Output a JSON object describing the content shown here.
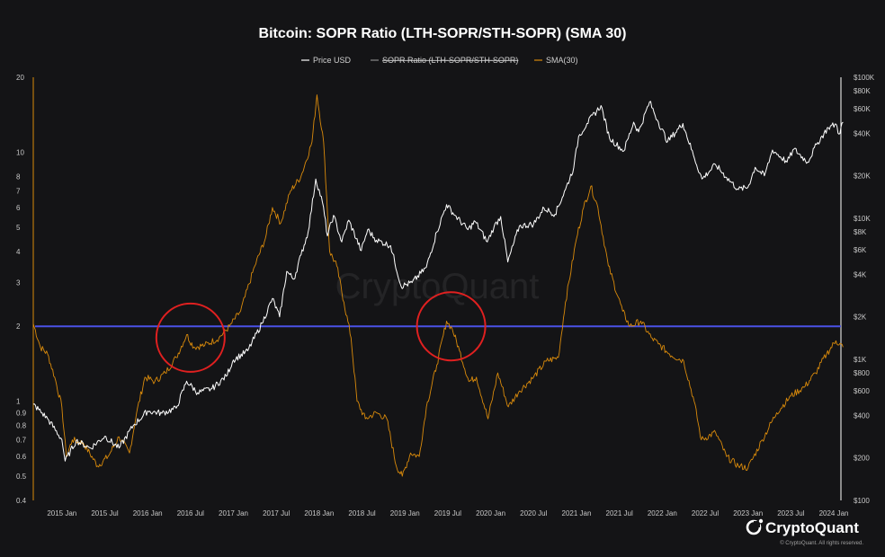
{
  "chart_data": {
    "type": "line",
    "title": "Bitcoin: SOPR Ratio (LTH-SOPR/STH-SOPR) (SMA 30)",
    "legend": [
      "Price USD",
      "SOPR Ratio (LTH-SOPR/STH-SOPR)",
      "SMA(30)"
    ],
    "legend_placement": "top-center",
    "x_range": [
      "2014-09",
      "2024-02"
    ],
    "x_ticks": [
      "2015 Jan",
      "2015 Jul",
      "2016 Jan",
      "2016 Jul",
      "2017 Jan",
      "2017 Jul",
      "2018 Jan",
      "2018 Jul",
      "2019 Jan",
      "2019 Jul",
      "2020 Jan",
      "2020 Jul",
      "2021 Jan",
      "2021 Jul",
      "2022 Jan",
      "2022 Jul",
      "2023 Jan",
      "2023 Jul",
      "2024 Jan"
    ],
    "y_left": {
      "scale": "log",
      "range": [
        0.4,
        20
      ],
      "ticks": [
        {
          "value": 0.4,
          "label": "0.4"
        },
        {
          "value": 0.5,
          "label": "0.5"
        },
        {
          "value": 0.6,
          "label": "0.6"
        },
        {
          "value": 0.7,
          "label": "0.7"
        },
        {
          "value": 0.8,
          "label": "0.8"
        },
        {
          "value": 0.9,
          "label": "0.9"
        },
        {
          "value": 1,
          "label": "1"
        },
        {
          "value": 2,
          "label": "2"
        },
        {
          "value": 3,
          "label": "3"
        },
        {
          "value": 4,
          "label": "4"
        },
        {
          "value": 5,
          "label": "5"
        },
        {
          "value": 6,
          "label": "6"
        },
        {
          "value": 7,
          "label": "7"
        },
        {
          "value": 8,
          "label": "8"
        },
        {
          "value": 10,
          "label": "10"
        },
        {
          "value": 20,
          "label": "20"
        }
      ]
    },
    "y_right": {
      "scale": "log",
      "range": [
        100,
        100000
      ],
      "ticks": [
        {
          "value": 100,
          "label": "$100"
        },
        {
          "value": 200,
          "label": "$200"
        },
        {
          "value": 400,
          "label": "$400"
        },
        {
          "value": 600,
          "label": "$600"
        },
        {
          "value": 800,
          "label": "$800"
        },
        {
          "value": 1000,
          "label": "$1K"
        },
        {
          "value": 2000,
          "label": "$2K"
        },
        {
          "value": 4000,
          "label": "$4K"
        },
        {
          "value": 6000,
          "label": "$6K"
        },
        {
          "value": 8000,
          "label": "$8K"
        },
        {
          "value": 10000,
          "label": "$10K"
        },
        {
          "value": 20000,
          "label": "$20K"
        },
        {
          "value": 40000,
          "label": "$40K"
        },
        {
          "value": 60000,
          "label": "$60K"
        },
        {
          "value": 80000,
          "label": "$80K"
        },
        {
          "value": 100000,
          "label": "$100K"
        }
      ]
    },
    "series": [
      {
        "name": "Price USD",
        "axis": "right",
        "color": "#ffffff",
        "points": [
          [
            "2014-09-01",
            480
          ],
          [
            "2014-11-01",
            380
          ],
          [
            "2015-01-01",
            270
          ],
          [
            "2015-01-15",
            190
          ],
          [
            "2015-03-01",
            265
          ],
          [
            "2015-05-01",
            235
          ],
          [
            "2015-07-01",
            285
          ],
          [
            "2015-09-01",
            235
          ],
          [
            "2015-11-01",
            340
          ],
          [
            "2016-01-01",
            430
          ],
          [
            "2016-03-01",
            415
          ],
          [
            "2016-05-01",
            450
          ],
          [
            "2016-06-15",
            700
          ],
          [
            "2016-08-01",
            580
          ],
          [
            "2016-10-01",
            620
          ],
          [
            "2016-12-01",
            760
          ],
          [
            "2017-01-01",
            990
          ],
          [
            "2017-03-01",
            1150
          ],
          [
            "2017-05-01",
            1800
          ],
          [
            "2017-06-15",
            2700
          ],
          [
            "2017-07-15",
            2000
          ],
          [
            "2017-08-15",
            4200
          ],
          [
            "2017-09-15",
            3700
          ],
          [
            "2017-10-15",
            5500
          ],
          [
            "2017-11-15",
            8000
          ],
          [
            "2017-12-17",
            19000
          ],
          [
            "2018-01-15",
            13000
          ],
          [
            "2018-02-06",
            7500
          ],
          [
            "2018-03-01",
            10500
          ],
          [
            "2018-04-06",
            6800
          ],
          [
            "2018-05-05",
            9700
          ],
          [
            "2018-06-28",
            5900
          ],
          [
            "2018-07-25",
            8300
          ],
          [
            "2018-09-01",
            7000
          ],
          [
            "2018-11-01",
            6400
          ],
          [
            "2018-12-15",
            3300
          ],
          [
            "2019-02-01",
            3500
          ],
          [
            "2019-04-01",
            4500
          ],
          [
            "2019-05-15",
            8000
          ],
          [
            "2019-06-26",
            12500
          ],
          [
            "2019-08-01",
            10500
          ],
          [
            "2019-09-26",
            8300
          ],
          [
            "2019-10-26",
            9500
          ],
          [
            "2019-12-17",
            6800
          ],
          [
            "2020-01-15",
            8700
          ],
          [
            "2020-02-13",
            10300
          ],
          [
            "2020-03-13",
            4900
          ],
          [
            "2020-05-01",
            8800
          ],
          [
            "2020-07-01",
            9100
          ],
          [
            "2020-08-15",
            11800
          ],
          [
            "2020-10-01",
            10700
          ],
          [
            "2020-11-15",
            16000
          ],
          [
            "2020-12-20",
            23000
          ],
          [
            "2021-01-10",
            38000
          ],
          [
            "2021-02-15",
            47000
          ],
          [
            "2021-04-14",
            63000
          ],
          [
            "2021-05-20",
            37000
          ],
          [
            "2021-07-20",
            30000
          ],
          [
            "2021-09-01",
            48000
          ],
          [
            "2021-09-22",
            41000
          ],
          [
            "2021-11-08",
            67000
          ],
          [
            "2021-12-15",
            48000
          ],
          [
            "2022-01-24",
            35000
          ],
          [
            "2022-03-28",
            47000
          ],
          [
            "2022-05-12",
            28000
          ],
          [
            "2022-06-18",
            19000
          ],
          [
            "2022-08-15",
            24000
          ],
          [
            "2022-10-01",
            19500
          ],
          [
            "2022-11-21",
            16000
          ],
          [
            "2022-12-31",
            16600
          ],
          [
            "2023-02-01",
            23000
          ],
          [
            "2023-03-10",
            20000
          ],
          [
            "2023-04-14",
            30500
          ],
          [
            "2023-06-15",
            25000
          ],
          [
            "2023-07-14",
            31000
          ],
          [
            "2023-09-11",
            25000
          ],
          [
            "2023-10-24",
            34500
          ],
          [
            "2023-12-08",
            44000
          ],
          [
            "2024-01-11",
            46500
          ],
          [
            "2024-01-23",
            39500
          ],
          [
            "2024-02-10",
            48000
          ]
        ]
      },
      {
        "name": "SMA(30)",
        "axis": "left",
        "color": "#d98a0b",
        "points": [
          [
            "2014-09-01",
            2.05
          ],
          [
            "2014-10-01",
            1.65
          ],
          [
            "2014-11-01",
            1.55
          ],
          [
            "2014-12-01",
            1.25
          ],
          [
            "2015-01-01",
            0.95
          ],
          [
            "2015-01-20",
            0.6
          ],
          [
            "2015-02-15",
            0.7
          ],
          [
            "2015-04-01",
            0.68
          ],
          [
            "2015-06-01",
            0.55
          ],
          [
            "2015-07-15",
            0.6
          ],
          [
            "2015-09-01",
            0.72
          ],
          [
            "2015-10-15",
            0.62
          ],
          [
            "2015-11-15",
            0.9
          ],
          [
            "2015-12-20",
            1.25
          ],
          [
            "2016-02-01",
            1.2
          ],
          [
            "2016-03-15",
            1.3
          ],
          [
            "2016-05-01",
            1.5
          ],
          [
            "2016-06-15",
            1.85
          ],
          [
            "2016-07-15",
            1.65
          ],
          [
            "2016-09-01",
            1.68
          ],
          [
            "2016-11-01",
            1.8
          ],
          [
            "2016-12-15",
            2.0
          ],
          [
            "2017-02-01",
            2.3
          ],
          [
            "2017-04-01",
            3.5
          ],
          [
            "2017-05-15",
            4.5
          ],
          [
            "2017-06-15",
            6.0
          ],
          [
            "2017-07-20",
            5.2
          ],
          [
            "2017-09-01",
            7.0
          ],
          [
            "2017-10-15",
            8.0
          ],
          [
            "2017-12-01",
            11.0
          ],
          [
            "2017-12-22",
            17.0
          ],
          [
            "2018-01-20",
            11.0
          ],
          [
            "2018-02-15",
            4.0
          ],
          [
            "2018-03-15",
            3.5
          ],
          [
            "2018-04-15",
            2.5
          ],
          [
            "2018-05-15",
            1.8
          ],
          [
            "2018-06-10",
            1.0
          ],
          [
            "2018-07-15",
            0.85
          ],
          [
            "2018-09-01",
            0.9
          ],
          [
            "2018-10-15",
            0.85
          ],
          [
            "2018-11-25",
            0.55
          ],
          [
            "2018-12-20",
            0.5
          ],
          [
            "2019-01-25",
            0.62
          ],
          [
            "2019-03-01",
            0.6
          ],
          [
            "2019-04-01",
            0.95
          ],
          [
            "2019-05-15",
            1.4
          ],
          [
            "2019-06-26",
            2.1
          ],
          [
            "2019-07-20",
            1.95
          ],
          [
            "2019-08-20",
            1.6
          ],
          [
            "2019-09-30",
            1.2
          ],
          [
            "2019-11-01",
            1.25
          ],
          [
            "2019-12-20",
            0.85
          ],
          [
            "2020-02-01",
            1.3
          ],
          [
            "2020-03-15",
            0.95
          ],
          [
            "2020-05-01",
            1.1
          ],
          [
            "2020-07-01",
            1.25
          ],
          [
            "2020-08-25",
            1.45
          ],
          [
            "2020-10-15",
            1.5
          ],
          [
            "2020-11-15",
            2.5
          ],
          [
            "2021-01-01",
            4.5
          ],
          [
            "2021-02-01",
            6.0
          ],
          [
            "2021-03-01",
            7.3
          ],
          [
            "2021-04-01",
            6.0
          ],
          [
            "2021-05-15",
            3.5
          ],
          [
            "2021-07-15",
            2.3
          ],
          [
            "2021-08-15",
            2.0
          ],
          [
            "2021-10-01",
            2.1
          ],
          [
            "2021-11-15",
            1.8
          ],
          [
            "2021-12-15",
            1.7
          ],
          [
            "2022-02-01",
            1.55
          ],
          [
            "2022-04-01",
            1.45
          ],
          [
            "2022-05-15",
            1.0
          ],
          [
            "2022-06-15",
            0.7
          ],
          [
            "2022-08-15",
            0.75
          ],
          [
            "2022-10-01",
            0.6
          ],
          [
            "2022-11-21",
            0.55
          ],
          [
            "2023-01-01",
            0.54
          ],
          [
            "2023-03-01",
            0.7
          ],
          [
            "2023-05-01",
            0.9
          ],
          [
            "2023-07-01",
            1.05
          ],
          [
            "2023-09-01",
            1.15
          ],
          [
            "2023-10-15",
            1.3
          ],
          [
            "2023-12-01",
            1.55
          ],
          [
            "2024-01-10",
            1.75
          ],
          [
            "2024-02-10",
            1.65
          ]
        ]
      }
    ],
    "reference_line": {
      "axis": "left",
      "value": 2.0,
      "color": "#4b52e6"
    },
    "annotations": [
      {
        "type": "circle",
        "date": "2016-07-01",
        "value": 1.8,
        "color": "#e02020"
      },
      {
        "type": "circle",
        "date": "2019-07-15",
        "value": 2.0,
        "color": "#e02020"
      }
    ],
    "grid": false
  },
  "branding": {
    "watermark": "CryptoQuant",
    "logo_text": "CryptoQuant",
    "copyright": "© CryptoQuant. All rights reserved."
  }
}
